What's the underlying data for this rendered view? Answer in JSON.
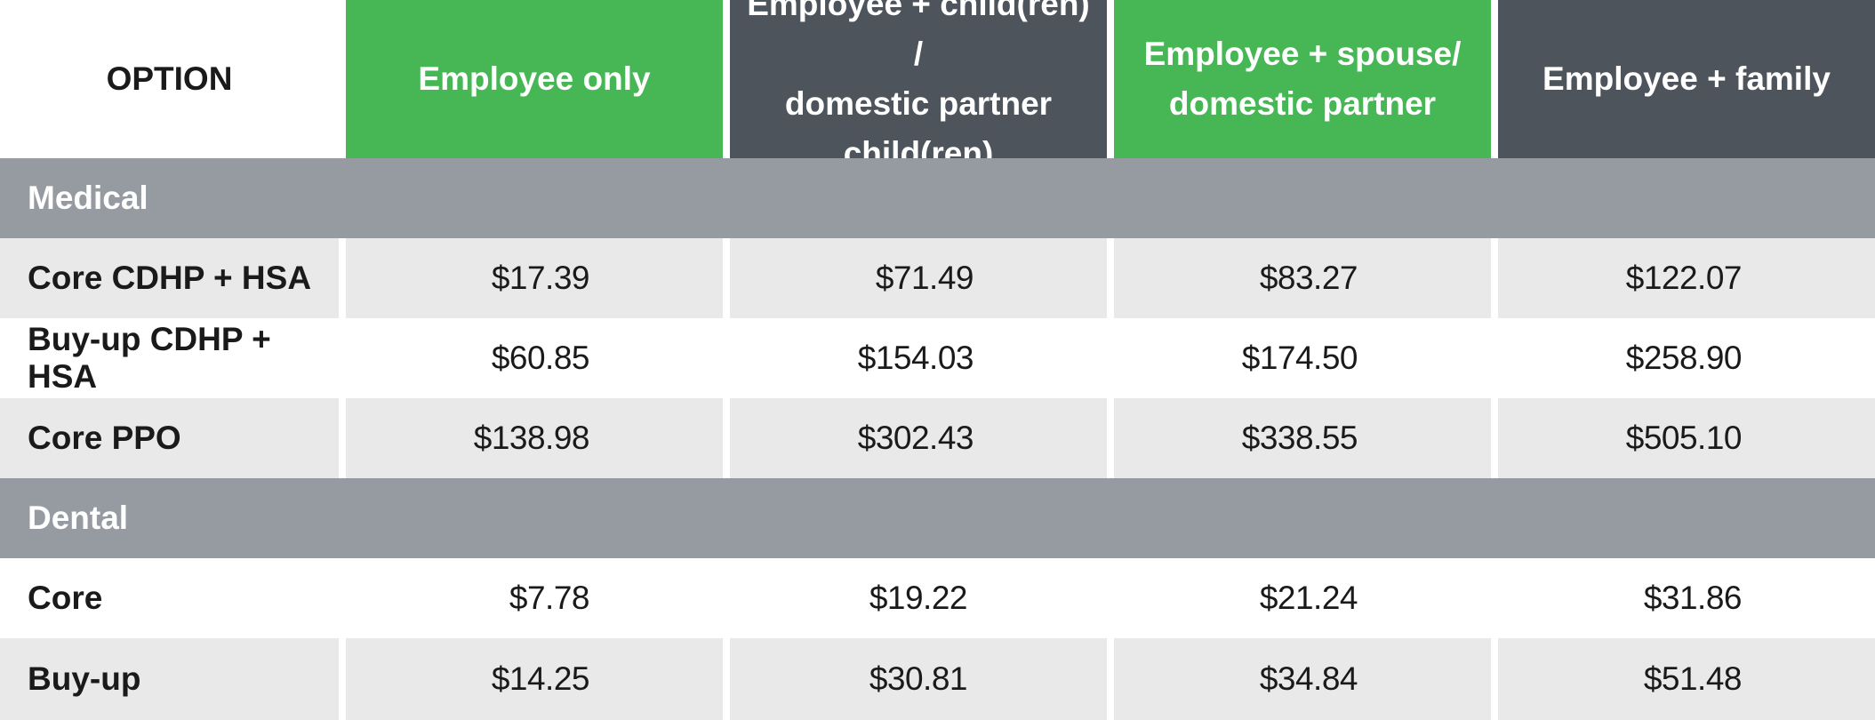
{
  "header": {
    "option": "OPTION",
    "columns": [
      {
        "line1": "Employee only",
        "line2": "",
        "line3": ""
      },
      {
        "line1": "Employee + child(ren) /",
        "line2": "domestic partner",
        "line3": "child(ren)"
      },
      {
        "line1": "Employee + spouse/",
        "line2": "domestic partner",
        "line3": ""
      },
      {
        "line1": "Employee + family",
        "line2": "",
        "line3": ""
      }
    ],
    "colors": {
      "green": "#46b754",
      "dark": "#4d545b",
      "section": "#969ba2",
      "shade": "#e9e9e9"
    }
  },
  "sections": [
    {
      "title": "Medical",
      "rows": [
        {
          "label": "Core CDHP + HSA",
          "values": [
            "$17.39",
            "$71.49",
            "$83.27",
            "$122.07"
          ]
        },
        {
          "label": "Buy-up CDHP + HSA",
          "values": [
            "$60.85",
            "$154.03",
            "$174.50",
            "$258.90"
          ]
        },
        {
          "label": "Core PPO",
          "values": [
            "$138.98",
            "$302.43",
            "$338.55",
            "$505.10"
          ]
        }
      ]
    },
    {
      "title": "Dental",
      "rows": [
        {
          "label": "Core",
          "values": [
            "$7.78",
            "$19.22",
            "$21.24",
            "$31.86"
          ]
        },
        {
          "label": "Buy-up",
          "values": [
            "$14.25",
            "$30.81",
            "$34.84",
            "$51.48"
          ]
        }
      ]
    }
  ]
}
